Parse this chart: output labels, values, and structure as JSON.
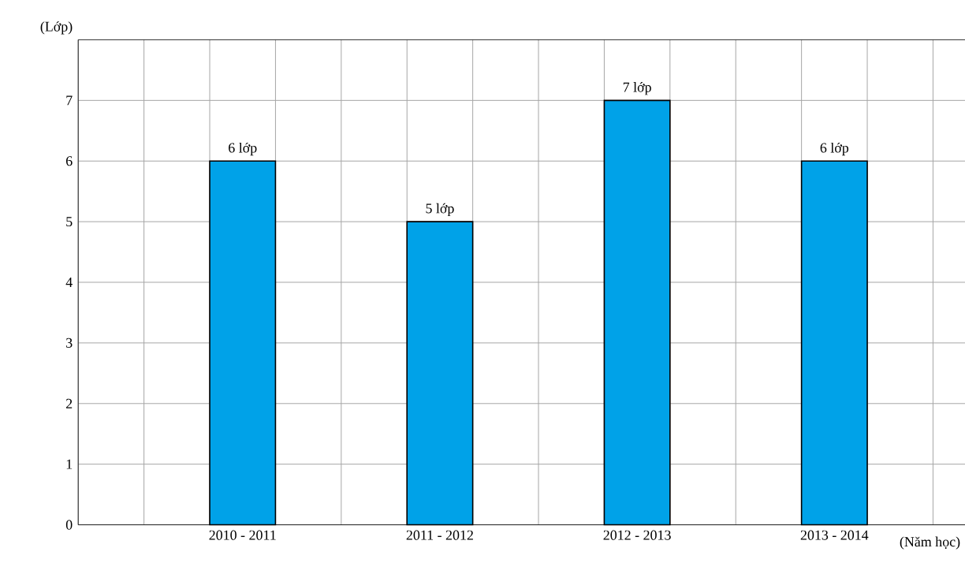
{
  "chart_data": {
    "type": "bar",
    "categories": [
      "2010 - 2011",
      "2011 - 2012",
      "2012 - 2013",
      "2013 - 2014"
    ],
    "values": [
      6,
      5,
      7,
      6
    ],
    "value_labels": [
      "6 lớp",
      "5 lớp",
      "7 lớp",
      "6 lớp"
    ],
    "color": "#00a2e8",
    "xlabel": "(Năm học)",
    "ylabel": "(Lớp)",
    "ylim": [
      0,
      8
    ],
    "yticks": [
      0,
      1,
      2,
      3,
      4,
      5,
      6,
      7
    ],
    "grid": true
  }
}
